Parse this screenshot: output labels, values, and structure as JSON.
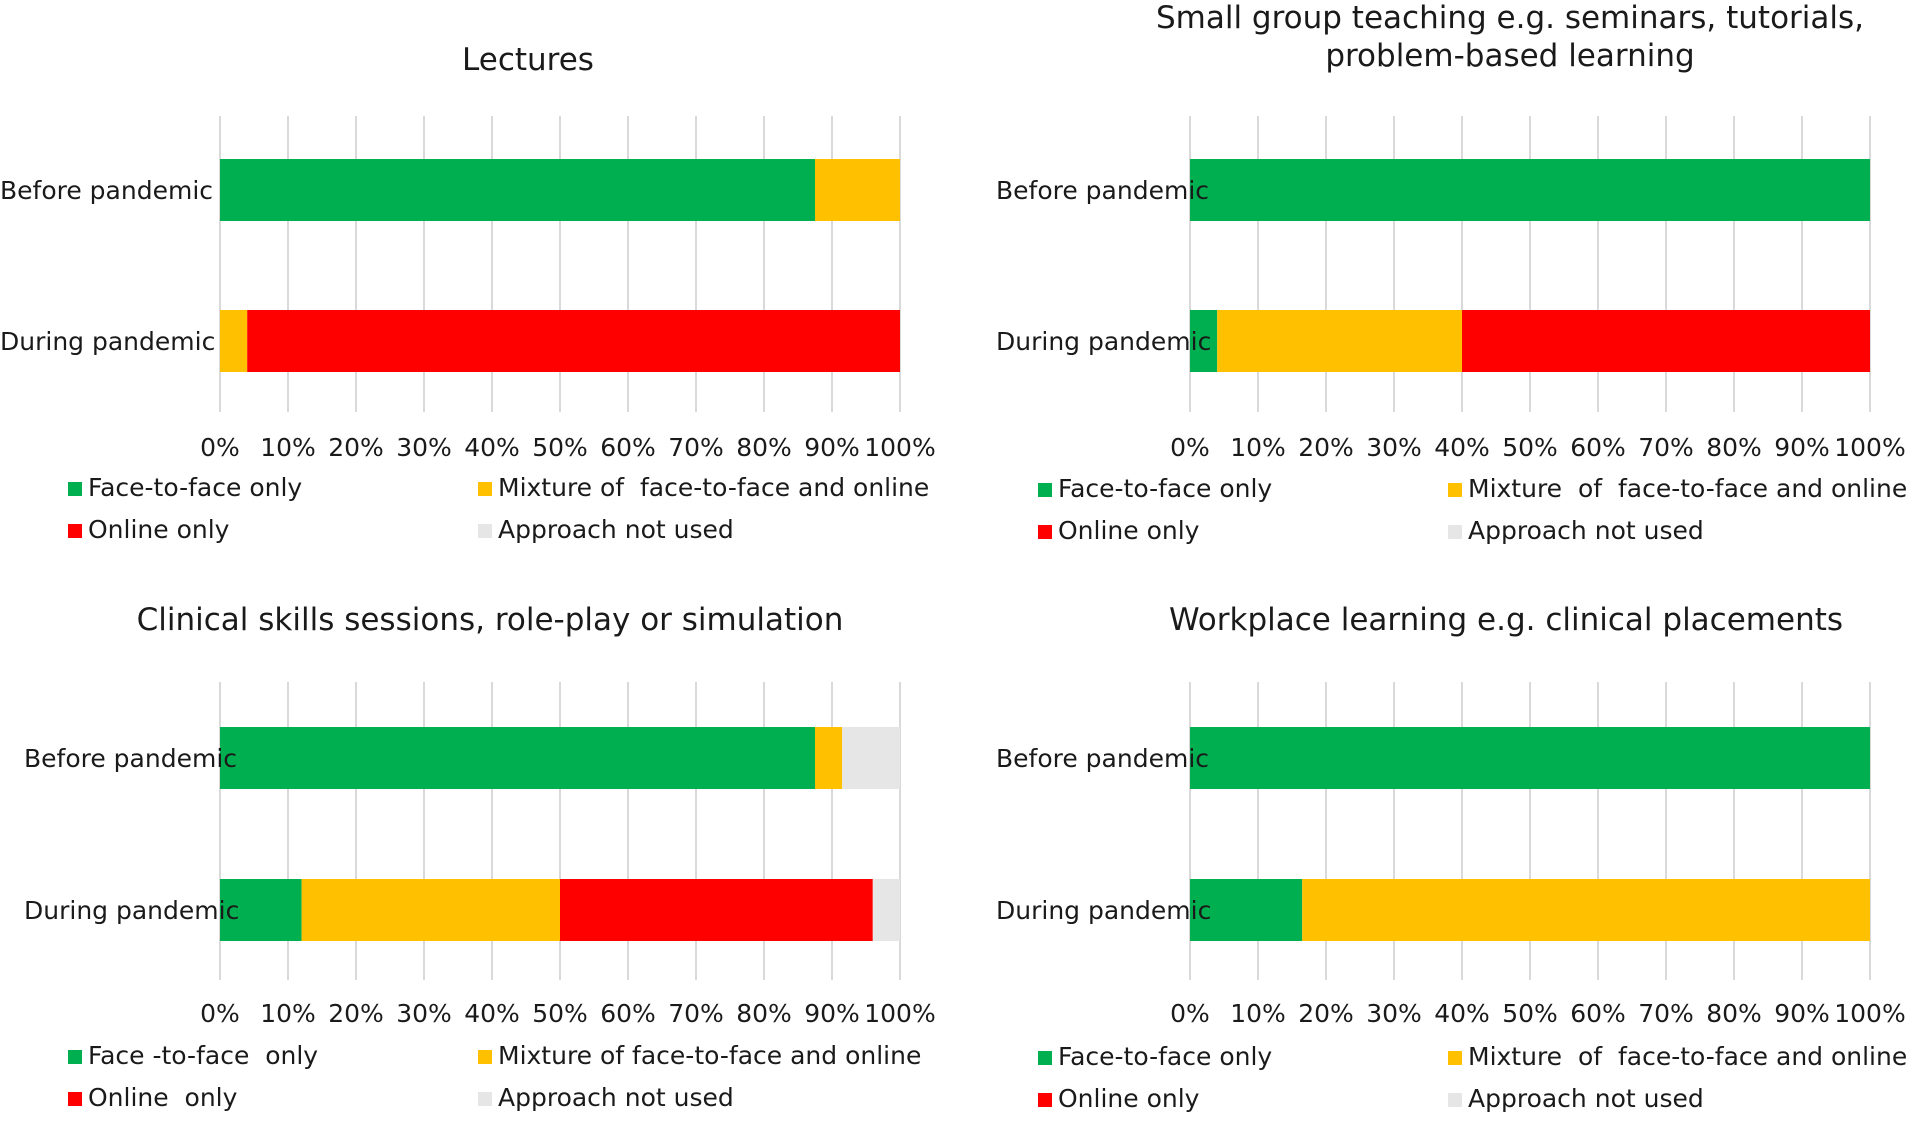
{
  "legend_colors": {
    "face": "#00b050",
    "mixture": "#ffc000",
    "online": "#ff0000",
    "notused": "#e6e6e6"
  },
  "chart_data": [
    {
      "type": "bar",
      "orientation": "horizontal",
      "stacked": true,
      "title_lines": [
        "Lectures"
      ],
      "categories": [
        "Before pandemic",
        "During pandemic"
      ],
      "xlim": [
        0,
        100
      ],
      "ticks": [
        "0%",
        "10%",
        "20%",
        "30%",
        "40%",
        "50%",
        "60%",
        "70%",
        "80%",
        "90%",
        "100%"
      ],
      "series": [
        {
          "key": "face",
          "name": "Face-to-face only",
          "values": [
            87.5,
            0
          ]
        },
        {
          "key": "mixture",
          "name": "Mixture of  face-to-face and online",
          "values": [
            12.5,
            4
          ]
        },
        {
          "key": "online",
          "name": "Online only",
          "values": [
            0,
            96
          ]
        },
        {
          "key": "notused",
          "name": "Approach not used",
          "values": [
            0,
            0
          ]
        }
      ]
    },
    {
      "type": "bar",
      "orientation": "horizontal",
      "stacked": true,
      "title_lines": [
        "Small group teaching e.g. seminars, tutorials,",
        "problem-based learning"
      ],
      "categories": [
        "Before pandemic",
        "During pandemic"
      ],
      "xlim": [
        0,
        100
      ],
      "ticks": [
        "0%",
        "10%",
        "20%",
        "30%",
        "40%",
        "50%",
        "60%",
        "70%",
        "80%",
        "90%",
        "100%"
      ],
      "series": [
        {
          "key": "face",
          "name": "Face-to-face only",
          "values": [
            100,
            4
          ]
        },
        {
          "key": "mixture",
          "name": "Mixture  of  face-to-face and online",
          "values": [
            0,
            36
          ]
        },
        {
          "key": "online",
          "name": "Online only",
          "values": [
            0,
            60
          ]
        },
        {
          "key": "notused",
          "name": "Approach not used",
          "values": [
            0,
            0
          ]
        }
      ]
    },
    {
      "type": "bar",
      "orientation": "horizontal",
      "stacked": true,
      "title_lines": [
        "Clinical skills sessions, role-play or simulation"
      ],
      "categories": [
        "Before pandemic",
        "During pandemic"
      ],
      "xlim": [
        0,
        100
      ],
      "ticks": [
        "0%",
        "10%",
        "20%",
        "30%",
        "40%",
        "50%",
        "60%",
        "70%",
        "80%",
        "90%",
        "100%"
      ],
      "series": [
        {
          "key": "face",
          "name": "Face -to-face  only",
          "values": [
            87.5,
            12
          ]
        },
        {
          "key": "mixture",
          "name": "Mixture of face-to-face and online",
          "values": [
            4,
            38
          ]
        },
        {
          "key": "online",
          "name": "Online  only",
          "values": [
            0,
            46
          ]
        },
        {
          "key": "notused",
          "name": "Approach not used",
          "values": [
            8.5,
            4
          ]
        }
      ]
    },
    {
      "type": "bar",
      "orientation": "horizontal",
      "stacked": true,
      "title_lines": [
        "Workplace learning e.g. clinical placements"
      ],
      "categories": [
        "Before pandemic",
        "During pandemic"
      ],
      "xlim": [
        0,
        100
      ],
      "ticks": [
        "0%",
        "10%",
        "20%",
        "30%",
        "40%",
        "50%",
        "60%",
        "70%",
        "80%",
        "90%",
        "100%"
      ],
      "series": [
        {
          "key": "face",
          "name": "Face-to-face only",
          "values": [
            100,
            16.5
          ]
        },
        {
          "key": "mixture",
          "name": "Mixture  of  face-to-face and online",
          "values": [
            0,
            83.5
          ]
        },
        {
          "key": "online",
          "name": "Online only",
          "values": [
            0,
            0
          ]
        },
        {
          "key": "notused",
          "name": "Approach not used",
          "values": [
            0,
            0
          ]
        }
      ]
    }
  ]
}
